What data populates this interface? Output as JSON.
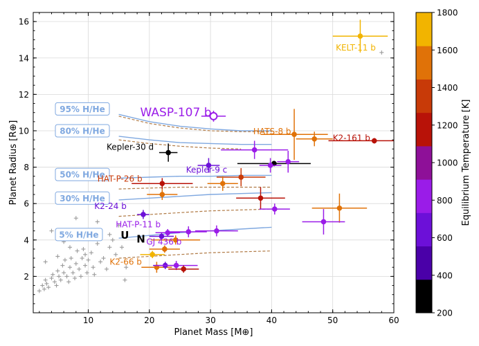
{
  "chart_data": {
    "type": "scatter",
    "xlabel": "Planet Mass [M⊕]",
    "ylabel": "Planet Radius [R⊕]",
    "xlim": [
      1,
      60
    ],
    "ylim": [
      0,
      16.5
    ],
    "x_ticks": [
      "10",
      "20",
      "30",
      "40",
      "50",
      "60"
    ],
    "y_ticks": [
      "2",
      "4",
      "6",
      "8",
      "10",
      "12",
      "14",
      "16"
    ],
    "grid": true,
    "colorbar": {
      "label": "Equilibrium Temperature [K]",
      "range": [
        200,
        1800
      ],
      "ticks": [
        "200",
        "400",
        "600",
        "800",
        "1000",
        "1200",
        "1400",
        "1600",
        "1800"
      ],
      "colors": [
        "#000000",
        "#4a00a8",
        "#6c10d8",
        "#9a1ce8",
        "#8e1098",
        "#b81208",
        "#c83a08",
        "#e07208",
        "#f2b400"
      ]
    },
    "composition_labels": [
      {
        "text": "95% H/He",
        "y": 11.2
      },
      {
        "text": "80% H/He",
        "y": 10.0
      },
      {
        "text": "50% H/He",
        "y": 7.6
      },
      {
        "text": "30% H/He",
        "y": 6.3
      },
      {
        "text": "5% H/He",
        "y": 4.3
      }
    ],
    "model_curves": [
      {
        "kind": "solid",
        "points": [
          [
            15,
            10.9
          ],
          [
            20,
            10.5
          ],
          [
            25,
            10.25
          ],
          [
            30,
            10.1
          ],
          [
            35,
            10.0
          ],
          [
            40,
            10.0
          ]
        ]
      },
      {
        "kind": "dashed",
        "points": [
          [
            15,
            10.8
          ],
          [
            20,
            10.4
          ],
          [
            25,
            10.15
          ],
          [
            30,
            10.0
          ],
          [
            35,
            9.95
          ],
          [
            40,
            9.95
          ]
        ]
      },
      {
        "kind": "solid",
        "points": [
          [
            15,
            9.7
          ],
          [
            20,
            9.5
          ],
          [
            25,
            9.35
          ],
          [
            30,
            9.3
          ],
          [
            35,
            9.25
          ],
          [
            40,
            9.25
          ]
        ]
      },
      {
        "kind": "dashed",
        "points": [
          [
            15,
            9.5
          ],
          [
            20,
            9.3
          ],
          [
            25,
            9.15
          ],
          [
            30,
            9.05
          ],
          [
            35,
            9.0
          ]
        ]
      },
      {
        "kind": "solid",
        "points": [
          [
            15,
            7.4
          ],
          [
            20,
            7.45
          ],
          [
            25,
            7.5
          ],
          [
            30,
            7.5
          ],
          [
            35,
            7.55
          ],
          [
            40,
            7.55
          ]
        ]
      },
      {
        "kind": "dashed",
        "points": [
          [
            15,
            6.8
          ],
          [
            20,
            6.85
          ],
          [
            25,
            6.9
          ],
          [
            30,
            6.9
          ],
          [
            35,
            6.9
          ],
          [
            40,
            6.9
          ]
        ]
      },
      {
        "kind": "solid",
        "points": [
          [
            15,
            6.2
          ],
          [
            20,
            6.3
          ],
          [
            25,
            6.4
          ],
          [
            30,
            6.5
          ],
          [
            35,
            6.55
          ],
          [
            40,
            6.6
          ]
        ]
      },
      {
        "kind": "dashed",
        "points": [
          [
            15,
            5.3
          ],
          [
            20,
            5.4
          ],
          [
            25,
            5.5
          ],
          [
            30,
            5.6
          ],
          [
            35,
            5.65
          ],
          [
            40,
            5.7
          ]
        ]
      },
      {
        "kind": "solid",
        "points": [
          [
            15,
            4.1
          ],
          [
            20,
            4.25
          ],
          [
            25,
            4.4
          ],
          [
            30,
            4.5
          ],
          [
            35,
            4.6
          ],
          [
            40,
            4.7
          ]
        ]
      },
      {
        "kind": "dashed",
        "points": [
          [
            15,
            3.0
          ],
          [
            20,
            3.1
          ],
          [
            25,
            3.2
          ],
          [
            30,
            3.3
          ],
          [
            35,
            3.35
          ],
          [
            40,
            3.4
          ]
        ]
      }
    ],
    "planets": [
      {
        "mass": 54.5,
        "radius": 15.2,
        "xerr": 4.5,
        "yerr": 0.9,
        "temp": 1750
      },
      {
        "mass": 30.5,
        "radius": 10.8,
        "xerr": 2.0,
        "yerr": 0.3,
        "temp": 740,
        "open": true
      },
      {
        "mass": 43.7,
        "radius": 9.8,
        "xerr": 5.5,
        "yerr": 1.4,
        "temp": 1480
      },
      {
        "mass": 47.0,
        "radius": 9.55,
        "xerr": 3.0,
        "yerr": 0.4,
        "temp": 1580
      },
      {
        "mass": 56.8,
        "radius": 9.45,
        "xerr": 7.5,
        "yerr": 0.15,
        "temp": 1250
      },
      {
        "mass": 23.1,
        "radius": 8.8,
        "xerr": 1.5,
        "yerr": 0.5,
        "temp": 200
      },
      {
        "mass": 37.2,
        "radius": 8.95,
        "xerr": 5.5,
        "yerr": 0.5,
        "temp": 900
      },
      {
        "mass": 29.7,
        "radius": 8.1,
        "xerr": 1.8,
        "yerr": 0.4,
        "temp": 640
      },
      {
        "mass": 40.4,
        "radius": 8.2,
        "xerr": 6.0,
        "yerr": 0.15,
        "temp": 250
      },
      {
        "mass": 39.8,
        "radius": 8.1,
        "xerr": 1.8,
        "yerr": 0.4,
        "temp": 760
      },
      {
        "mass": 42.7,
        "radius": 8.3,
        "xerr": 1.8,
        "yerr": 0.6,
        "temp": 740
      },
      {
        "mass": 35.0,
        "radius": 7.45,
        "xerr": 4.0,
        "yerr": 0.5,
        "temp": 1320
      },
      {
        "mass": 32.0,
        "radius": 7.1,
        "xerr": 2.5,
        "yerr": 0.4,
        "temp": 1450
      },
      {
        "mass": 22.1,
        "radius": 7.1,
        "xerr": 5.0,
        "yerr": 0.3,
        "temp": 1200
      },
      {
        "mass": 22.1,
        "radius": 6.5,
        "xerr": 2.5,
        "yerr": 0.3,
        "temp": 1520
      },
      {
        "mass": 38.2,
        "radius": 6.3,
        "xerr": 4.0,
        "yerr": 0.6,
        "temp": 1200
      },
      {
        "mass": 40.5,
        "radius": 5.7,
        "xerr": 2.5,
        "yerr": 0.3,
        "temp": 900
      },
      {
        "mass": 51.1,
        "radius": 5.75,
        "xerr": 4.5,
        "yerr": 0.8,
        "temp": 1560
      },
      {
        "mass": 48.5,
        "radius": 5.0,
        "xerr": 3.5,
        "yerr": 0.7,
        "temp": 780
      },
      {
        "mass": 19.0,
        "radius": 5.4,
        "xerr": 1.0,
        "yerr": 0.25,
        "temp": 720
      },
      {
        "mass": 31.0,
        "radius": 4.5,
        "xerr": 3.5,
        "yerr": 0.3,
        "temp": 900
      },
      {
        "mass": 26.4,
        "radius": 4.45,
        "xerr": 3.0,
        "yerr": 0.3,
        "temp": 780
      },
      {
        "mass": 23.0,
        "radius": 4.4,
        "xerr": 2.0,
        "yerr": 0.2,
        "temp": 860
      },
      {
        "mass": 22.0,
        "radius": 4.2,
        "xerr": 2.0,
        "yerr": 0.2,
        "temp": 680
      },
      {
        "mass": 24.3,
        "radius": 4.0,
        "xerr": 4.0,
        "yerr": 0.25,
        "temp": 1500
      },
      {
        "mass": 22.5,
        "radius": 3.5,
        "xerr": 2.5,
        "yerr": 0.2,
        "temp": 1560
      },
      {
        "mass": 20.5,
        "radius": 3.2,
        "xerr": 2.0,
        "yerr": 0.2,
        "temp": 1760
      },
      {
        "mass": 21.2,
        "radius": 2.5,
        "xerr": 2.5,
        "yerr": 0.3,
        "temp": 1520
      },
      {
        "mass": 22.6,
        "radius": 2.6,
        "xerr": 2.0,
        "yerr": 0.2,
        "temp": 680
      },
      {
        "mass": 24.4,
        "radius": 2.6,
        "xerr": 3.5,
        "yerr": 0.25,
        "temp": 760
      },
      {
        "mass": 25.6,
        "radius": 2.4,
        "xerr": 2.5,
        "yerr": 0.2,
        "temp": 1220
      }
    ],
    "small_planets": [
      [
        2,
        1.2
      ],
      [
        2.5,
        1.5
      ],
      [
        2.8,
        1.3
      ],
      [
        3,
        1.8
      ],
      [
        3.2,
        1.6
      ],
      [
        3.5,
        1.4
      ],
      [
        4,
        1.9
      ],
      [
        4.2,
        2.1
      ],
      [
        4.5,
        1.7
      ],
      [
        4.8,
        1.5
      ],
      [
        5,
        2.3
      ],
      [
        5.2,
        2.0
      ],
      [
        5.5,
        1.8
      ],
      [
        5.8,
        2.6
      ],
      [
        6,
        2.2
      ],
      [
        6.2,
        2.9
      ],
      [
        6.5,
        2.0
      ],
      [
        6.8,
        1.7
      ],
      [
        7,
        2.5
      ],
      [
        7.2,
        3.0
      ],
      [
        7.5,
        2.2
      ],
      [
        7.8,
        1.9
      ],
      [
        8,
        2.7
      ],
      [
        8.2,
        3.4
      ],
      [
        8.5,
        2.4
      ],
      [
        8.8,
        2.0
      ],
      [
        9,
        3.0
      ],
      [
        9.2,
        3.5
      ],
      [
        9.5,
        2.6
      ],
      [
        9.8,
        2.2
      ],
      [
        10,
        2.9
      ],
      [
        10.5,
        3.3
      ],
      [
        10.8,
        2.5
      ],
      [
        11,
        2.1
      ],
      [
        11.5,
        3.8
      ],
      [
        12,
        2.8
      ],
      [
        12.5,
        3.0
      ],
      [
        13,
        2.4
      ],
      [
        13.5,
        3.6
      ],
      [
        14,
        4.0
      ],
      [
        14.5,
        3.2
      ],
      [
        15,
        4.8
      ],
      [
        15.5,
        3.6
      ],
      [
        16,
        1.8
      ],
      [
        16.2,
        2.5
      ],
      [
        4,
        4.5
      ],
      [
        8,
        5.2
      ],
      [
        9.5,
        3.2
      ],
      [
        6,
        3.9
      ],
      [
        3,
        2.8
      ],
      [
        5,
        3.1
      ],
      [
        7,
        3.6
      ],
      [
        11.5,
        5.0
      ],
      [
        13.5,
        4.3
      ],
      [
        58,
        14.3
      ]
    ],
    "labels": [
      {
        "text": "KELT-11 b",
        "x": 50.5,
        "y": 14.4,
        "temp": 1750,
        "size": 12
      },
      {
        "text": "WASP-107 b",
        "x": 18.5,
        "y": 10.8,
        "temp": 760,
        "size": 17
      },
      {
        "text": "HATS-8 b",
        "x": 37.0,
        "y": 9.8,
        "temp": 1480,
        "size": 12
      },
      {
        "text": "K2-161 b",
        "x": 50.0,
        "y": 9.45,
        "temp": 1250,
        "size": 12
      },
      {
        "text": "Kepler-30 d",
        "x": 13.0,
        "y": 8.95,
        "temp": 200,
        "size": 12
      },
      {
        "text": "Kepler-9 c",
        "x": 26.0,
        "y": 7.7,
        "temp": 660,
        "size": 12
      },
      {
        "text": "HAT-P-26 b",
        "x": 11.5,
        "y": 7.2,
        "temp": 1300,
        "size": 12
      },
      {
        "text": "K2-24 b",
        "x": 11.0,
        "y": 5.7,
        "temp": 720,
        "size": 12
      },
      {
        "text": "HAT-P-11 b",
        "x": 14.5,
        "y": 4.7,
        "temp": 760,
        "size": 12
      },
      {
        "text": "GJ 436 b",
        "x": 19.5,
        "y": 3.75,
        "temp": 740,
        "size": 12
      },
      {
        "text": "K2-66 b",
        "x": 13.5,
        "y": 2.65,
        "temp": 1520,
        "size": 12
      }
    ],
    "bold_labels": [
      {
        "text": "U",
        "x": 15.3,
        "y": 4.25
      },
      {
        "text": "N",
        "x": 17.9,
        "y": 4.05
      }
    ]
  }
}
